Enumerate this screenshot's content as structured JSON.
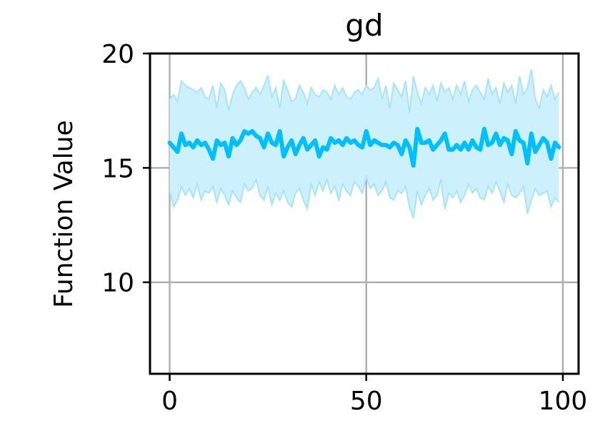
{
  "chart_data": {
    "type": "line",
    "title": "gd",
    "xlabel": "",
    "ylabel": "Function Value",
    "xlim": [
      -5,
      104
    ],
    "ylim": [
      6,
      20
    ],
    "xticks": [
      0,
      50,
      100
    ],
    "yticks": [
      10,
      15,
      20
    ],
    "grid": true,
    "colors": {
      "line": "#00bfff",
      "band_fill": "#cdf1fc",
      "band_edge": "#a6e4f8",
      "grid": "#b0b0b0"
    },
    "series": [
      {
        "x": [
          0,
          1,
          2,
          3,
          4,
          5,
          6,
          7,
          8,
          9,
          10,
          11,
          12,
          13,
          14,
          15,
          16,
          17,
          18,
          19,
          20,
          21,
          22,
          23,
          24,
          25,
          26,
          27,
          28,
          29,
          30,
          31,
          32,
          33,
          34,
          35,
          36,
          37,
          38,
          39,
          40,
          41,
          42,
          43,
          44,
          45,
          46,
          47,
          48,
          49,
          50,
          51,
          52,
          53,
          54,
          55,
          56,
          57,
          58,
          59,
          60,
          61,
          62,
          63,
          64,
          65,
          66,
          67,
          68,
          69,
          70,
          71,
          72,
          73,
          74,
          75,
          76,
          77,
          78,
          79,
          80,
          81,
          82,
          83,
          84,
          85,
          86,
          87,
          88,
          89,
          90,
          91,
          92,
          93,
          94,
          95,
          96,
          97,
          98,
          99
        ],
        "y": [
          16.1,
          15.9,
          15.7,
          16.5,
          16.0,
          16.1,
          15.9,
          16.2,
          16.0,
          16.1,
          15.8,
          15.4,
          16.2,
          16.0,
          16.1,
          15.5,
          16.3,
          16.0,
          16.2,
          16.6,
          16.5,
          16.6,
          16.4,
          16.3,
          15.9,
          16.5,
          16.1,
          16.0,
          16.6,
          15.5,
          15.9,
          16.2,
          15.6,
          16.0,
          16.3,
          15.8,
          16.0,
          16.2,
          15.5,
          15.9,
          15.8,
          16.3,
          16.1,
          16.2,
          16.0,
          16.3,
          16.1,
          16.2,
          16.0,
          15.9,
          16.6,
          16.0,
          16.2,
          16.1,
          16.0,
          16.0,
          15.9,
          16.1,
          16.0,
          15.6,
          16.2,
          15.9,
          15.1,
          16.7,
          16.1,
          16.1,
          16.2,
          15.8,
          16.0,
          16.2,
          16.5,
          15.8,
          15.8,
          16.0,
          15.8,
          16.1,
          15.8,
          16.2,
          15.9,
          15.8,
          16.7,
          16.0,
          16.1,
          16.5,
          16.0,
          16.3,
          16.2,
          15.6,
          16.6,
          16.2,
          16.1,
          15.2,
          16.5,
          15.7,
          16.0,
          16.3,
          16.1,
          15.4,
          16.1,
          15.9
        ],
        "upper": [
          18.0,
          18.2,
          17.9,
          18.8,
          18.6,
          18.5,
          18.4,
          18.3,
          18.5,
          18.1,
          18.0,
          18.6,
          17.6,
          18.7,
          18.4,
          17.5,
          18.2,
          18.6,
          18.8,
          18.5,
          18.0,
          18.3,
          18.5,
          18.2,
          18.6,
          19.0,
          18.1,
          18.5,
          17.6,
          18.8,
          18.4,
          17.9,
          18.0,
          18.6,
          18.3,
          17.8,
          18.5,
          18.2,
          18.1,
          18.4,
          18.3,
          18.0,
          18.6,
          18.2,
          18.5,
          18.1,
          18.0,
          18.3,
          18.4,
          18.2,
          18.6,
          18.4,
          18.5,
          18.9,
          18.0,
          18.6,
          17.6,
          18.7,
          18.4,
          18.1,
          18.8,
          17.4,
          19.0,
          18.3,
          17.8,
          18.5,
          18.2,
          18.6,
          17.9,
          18.7,
          18.3,
          18.5,
          18.0,
          18.6,
          18.2,
          18.8,
          17.9,
          18.4,
          18.6,
          18.3,
          18.0,
          18.9,
          18.2,
          18.5,
          17.8,
          18.7,
          18.3,
          18.6,
          17.8,
          19.0,
          18.2,
          18.5,
          19.3,
          18.0,
          17.6,
          18.4,
          18.1,
          18.6,
          18.0,
          18.3
        ],
        "lower": [
          14.0,
          13.3,
          13.6,
          14.2,
          13.8,
          14.1,
          13.7,
          14.3,
          13.6,
          14.0,
          13.9,
          14.2,
          13.5,
          14.1,
          13.8,
          13.4,
          14.0,
          13.7,
          13.5,
          14.3,
          14.0,
          14.1,
          14.5,
          13.8,
          13.6,
          14.2,
          13.4,
          13.9,
          13.6,
          14.0,
          13.5,
          13.3,
          13.9,
          14.1,
          13.6,
          13.2,
          14.3,
          13.8,
          14.4,
          14.0,
          14.5,
          13.9,
          14.2,
          13.6,
          14.3,
          14.0,
          13.8,
          14.4,
          14.2,
          13.9,
          14.6,
          14.1,
          14.3,
          13.8,
          14.0,
          14.4,
          13.7,
          13.6,
          14.0,
          13.9,
          14.2,
          13.3,
          12.8,
          14.0,
          13.4,
          13.8,
          14.1,
          13.6,
          13.8,
          14.5,
          13.2,
          13.9,
          13.7,
          14.0,
          13.5,
          13.8,
          14.3,
          13.9,
          14.1,
          13.7,
          13.6,
          14.2,
          13.9,
          14.4,
          14.0,
          13.5,
          14.3,
          13.8,
          13.7,
          13.9,
          14.2,
          13.0,
          13.6,
          14.1,
          13.8,
          13.9,
          14.0,
          13.3,
          13.7,
          13.5
        ]
      }
    ]
  }
}
